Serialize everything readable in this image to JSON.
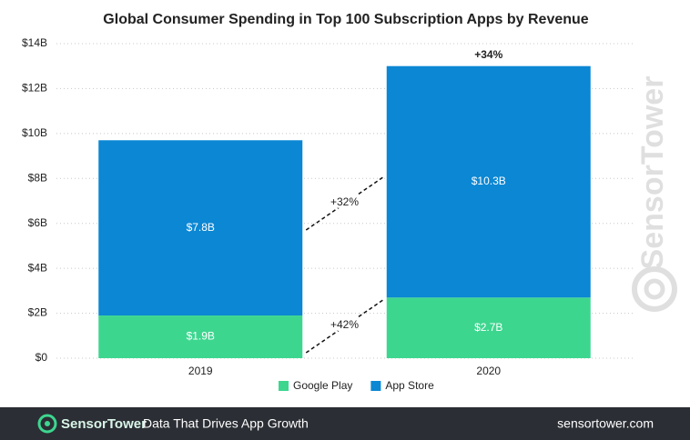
{
  "chart_data": {
    "type": "stacked-bar",
    "title": "Global Consumer Spending in Top 100 Subscription Apps by Revenue",
    "categories": [
      "2019",
      "2020"
    ],
    "series": [
      {
        "name": "Google Play",
        "color": "#3dd68f",
        "values": [
          1.9,
          2.7
        ],
        "value_labels": [
          "$1.9B",
          "$2.7B"
        ]
      },
      {
        "name": "App Store",
        "color": "#0b87d3",
        "values": [
          7.8,
          10.3
        ],
        "value_labels": [
          "$7.8B",
          "$10.3B"
        ]
      }
    ],
    "ylim": [
      0,
      14
    ],
    "yticks": [
      {
        "value": 0,
        "label": "$0"
      },
      {
        "value": 2,
        "label": "$2B"
      },
      {
        "value": 4,
        "label": "$4B"
      },
      {
        "value": 6,
        "label": "$6B"
      },
      {
        "value": 8,
        "label": "$8B"
      },
      {
        "value": 10,
        "label": "$10B"
      },
      {
        "value": 12,
        "label": "$12B"
      },
      {
        "value": 14,
        "label": "$14B"
      }
    ],
    "grid": true,
    "annotations": [
      "+34%",
      "+32%",
      "+42%"
    ]
  },
  "watermark": "SensorTower",
  "footer": {
    "brand": "SensorTower",
    "tagline": "Data That Drives App Growth",
    "url": "sensortower.com"
  }
}
